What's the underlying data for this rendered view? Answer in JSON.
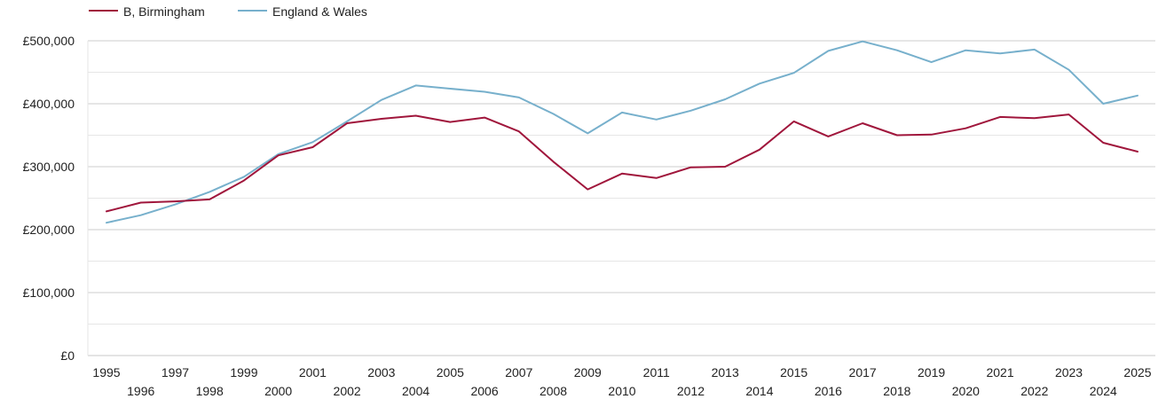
{
  "chart_data": {
    "type": "line",
    "title": "",
    "xlabel": "",
    "ylabel": "",
    "x": [
      1995,
      1996,
      1997,
      1998,
      1999,
      2000,
      2001,
      2002,
      2003,
      2004,
      2005,
      2006,
      2007,
      2008,
      2009,
      2010,
      2011,
      2012,
      2013,
      2014,
      2015,
      2016,
      2017,
      2018,
      2019,
      2020,
      2021,
      2022,
      2023,
      2024,
      2025
    ],
    "xlim": [
      1995,
      2025
    ],
    "ylim": [
      0,
      500000
    ],
    "y_ticks": [
      {
        "value": 0,
        "label": "£0"
      },
      {
        "value": 100000,
        "label": "£100,000"
      },
      {
        "value": 200000,
        "label": "£200,000"
      },
      {
        "value": 300000,
        "label": "£300,000"
      },
      {
        "value": 400000,
        "label": "£400,000"
      },
      {
        "value": 500000,
        "label": "£500,000"
      }
    ],
    "x_ticks": [
      "1995",
      "1996",
      "1997",
      "1998",
      "1999",
      "2000",
      "2001",
      "2002",
      "2003",
      "2004",
      "2005",
      "2006",
      "2007",
      "2008",
      "2009",
      "2010",
      "2011",
      "2012",
      "2013",
      "2014",
      "2015",
      "2016",
      "2017",
      "2018",
      "2019",
      "2020",
      "2021",
      "2022",
      "2023",
      "2024",
      "2025"
    ],
    "grid": true,
    "legend_position": "top-left",
    "series": [
      {
        "name": "B, Birmingham",
        "color": "#a0163c",
        "values": [
          229000,
          243000,
          245000,
          248000,
          278000,
          318000,
          331000,
          369000,
          376000,
          381000,
          371000,
          378000,
          356000,
          308000,
          264000,
          289000,
          282000,
          299000,
          300000,
          327000,
          372000,
          348000,
          369000,
          350000,
          351000,
          361000,
          379000,
          377000,
          383000,
          338000,
          324000
        ]
      },
      {
        "name": "England & Wales",
        "color": "#77b0cc",
        "values": [
          211000,
          223000,
          240000,
          260000,
          284000,
          320000,
          339000,
          372000,
          406000,
          429000,
          424000,
          419000,
          410000,
          384000,
          353000,
          386000,
          375000,
          389000,
          407000,
          432000,
          449000,
          484000,
          499000,
          485000,
          466000,
          485000,
          480000,
          486000,
          454000,
          400000,
          413000
        ]
      }
    ]
  }
}
